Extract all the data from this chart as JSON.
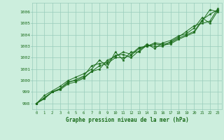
{
  "title": "Graphe pression niveau de la mer (hPa)",
  "x_values": [
    0,
    1,
    2,
    3,
    4,
    5,
    6,
    7,
    8,
    9,
    10,
    11,
    12,
    13,
    14,
    15,
    16,
    17,
    18,
    19,
    20,
    21,
    22,
    23
  ],
  "line1": [
    998.0,
    998.5,
    999.0,
    999.2,
    999.7,
    999.9,
    1000.2,
    1000.8,
    1001.3,
    1001.5,
    1002.0,
    1002.0,
    1002.2,
    1002.8,
    1003.0,
    1003.2,
    1003.1,
    1003.2,
    1003.6,
    1003.9,
    1004.2,
    1005.2,
    1006.2,
    1006.0
  ],
  "line2": [
    998.0,
    998.7,
    999.1,
    999.5,
    1000.0,
    1000.3,
    1000.6,
    1001.0,
    1001.8,
    1001.2,
    1002.5,
    1001.8,
    1002.5,
    1002.5,
    1003.1,
    1003.0,
    1003.0,
    1003.4,
    1003.8,
    1004.3,
    1004.8,
    1005.0,
    1005.2,
    1006.3
  ],
  "line3": [
    998.0,
    998.4,
    999.0,
    999.3,
    999.8,
    1000.1,
    1000.4,
    1001.3,
    1001.5,
    1001.6,
    1002.2,
    1002.3,
    1002.0,
    1002.6,
    1003.2,
    1002.8,
    1003.3,
    1003.5,
    1003.9,
    1004.1,
    1004.6,
    1005.5,
    1005.0,
    1006.1
  ],
  "line4": [
    998.0,
    998.5,
    999.0,
    999.3,
    999.9,
    1000.0,
    1000.3,
    1000.8,
    1001.0,
    1001.8,
    1002.1,
    1002.5,
    1002.3,
    1002.9,
    1003.0,
    1003.3,
    1003.2,
    1003.3,
    1003.7,
    1004.0,
    1004.3,
    1005.3,
    1005.8,
    1006.2
  ],
  "ylim": [
    997.5,
    1006.8
  ],
  "yticks": [
    998,
    999,
    1000,
    1001,
    1002,
    1003,
    1004,
    1005,
    1006
  ],
  "line_color": "#1a6b1a",
  "bg_color": "#cceedd",
  "grid_color": "#99ccbb",
  "marker": "*",
  "linewidth": 0.7,
  "markersize": 2.5
}
